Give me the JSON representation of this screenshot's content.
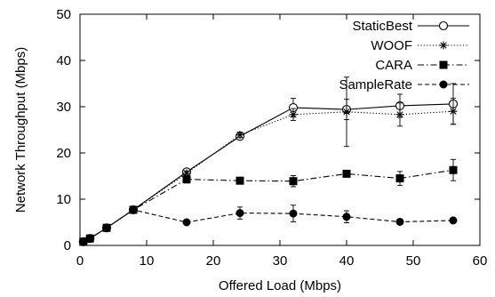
{
  "chart_data": {
    "type": "line",
    "xlabel": "Offered Load (Mbps)",
    "ylabel": "Network Throughput (Mbps)",
    "xlim": [
      0,
      60
    ],
    "ylim": [
      0,
      50
    ],
    "xticks": [
      0,
      10,
      20,
      30,
      40,
      50,
      60
    ],
    "yticks": [
      0,
      10,
      20,
      30,
      40,
      50
    ],
    "grid": false,
    "legend_position": "top-right",
    "series": [
      {
        "name": "StaticBest",
        "marker": "open-circle",
        "line": "solid",
        "color": "#000000",
        "x": [
          0.5,
          1.5,
          4,
          8,
          16,
          24,
          32,
          40,
          48,
          56
        ],
        "y": [
          0.8,
          1.5,
          3.8,
          7.7,
          15.9,
          23.6,
          29.8,
          29.4,
          30.2,
          30.6
        ],
        "err": [
          0.2,
          0.2,
          0.3,
          0.4,
          0.5,
          0.6,
          2.0,
          2.2,
          2.5,
          4.4
        ]
      },
      {
        "name": "WOOF",
        "marker": "asterisk",
        "line": "dotted",
        "color": "#000000",
        "x": [
          0.5,
          1.5,
          4,
          8,
          16,
          24,
          32,
          40,
          48,
          56
        ],
        "y": [
          0.8,
          1.5,
          3.8,
          7.7,
          15.6,
          23.9,
          28.3,
          28.9,
          28.3,
          29.0
        ],
        "err": [
          0.2,
          0.2,
          0.3,
          0.4,
          0.5,
          0.6,
          1.3,
          7.5,
          2.5,
          2.8
        ]
      },
      {
        "name": "CARA",
        "marker": "filled-square",
        "line": "dashdot",
        "color": "#000000",
        "x": [
          0.5,
          1.5,
          4,
          8,
          16,
          24,
          32,
          40,
          48,
          56
        ],
        "y": [
          0.8,
          1.5,
          3.8,
          7.7,
          14.3,
          14.0,
          13.9,
          15.5,
          14.5,
          16.3
        ],
        "err": [
          0.2,
          0.2,
          0.3,
          0.4,
          0.8,
          0.4,
          1.2,
          0.6,
          1.5,
          2.3
        ]
      },
      {
        "name": "SampleRate",
        "marker": "filled-circle",
        "line": "dashed",
        "color": "#000000",
        "x": [
          0.5,
          1.5,
          4,
          8,
          16,
          24,
          32,
          40,
          48,
          56
        ],
        "y": [
          0.8,
          1.5,
          3.8,
          7.7,
          5.0,
          7.0,
          6.9,
          6.2,
          5.1,
          5.4
        ],
        "err": [
          0.2,
          0.2,
          0.3,
          0.4,
          0.4,
          1.3,
          1.8,
          1.3,
          0.5,
          0.5
        ]
      }
    ]
  }
}
